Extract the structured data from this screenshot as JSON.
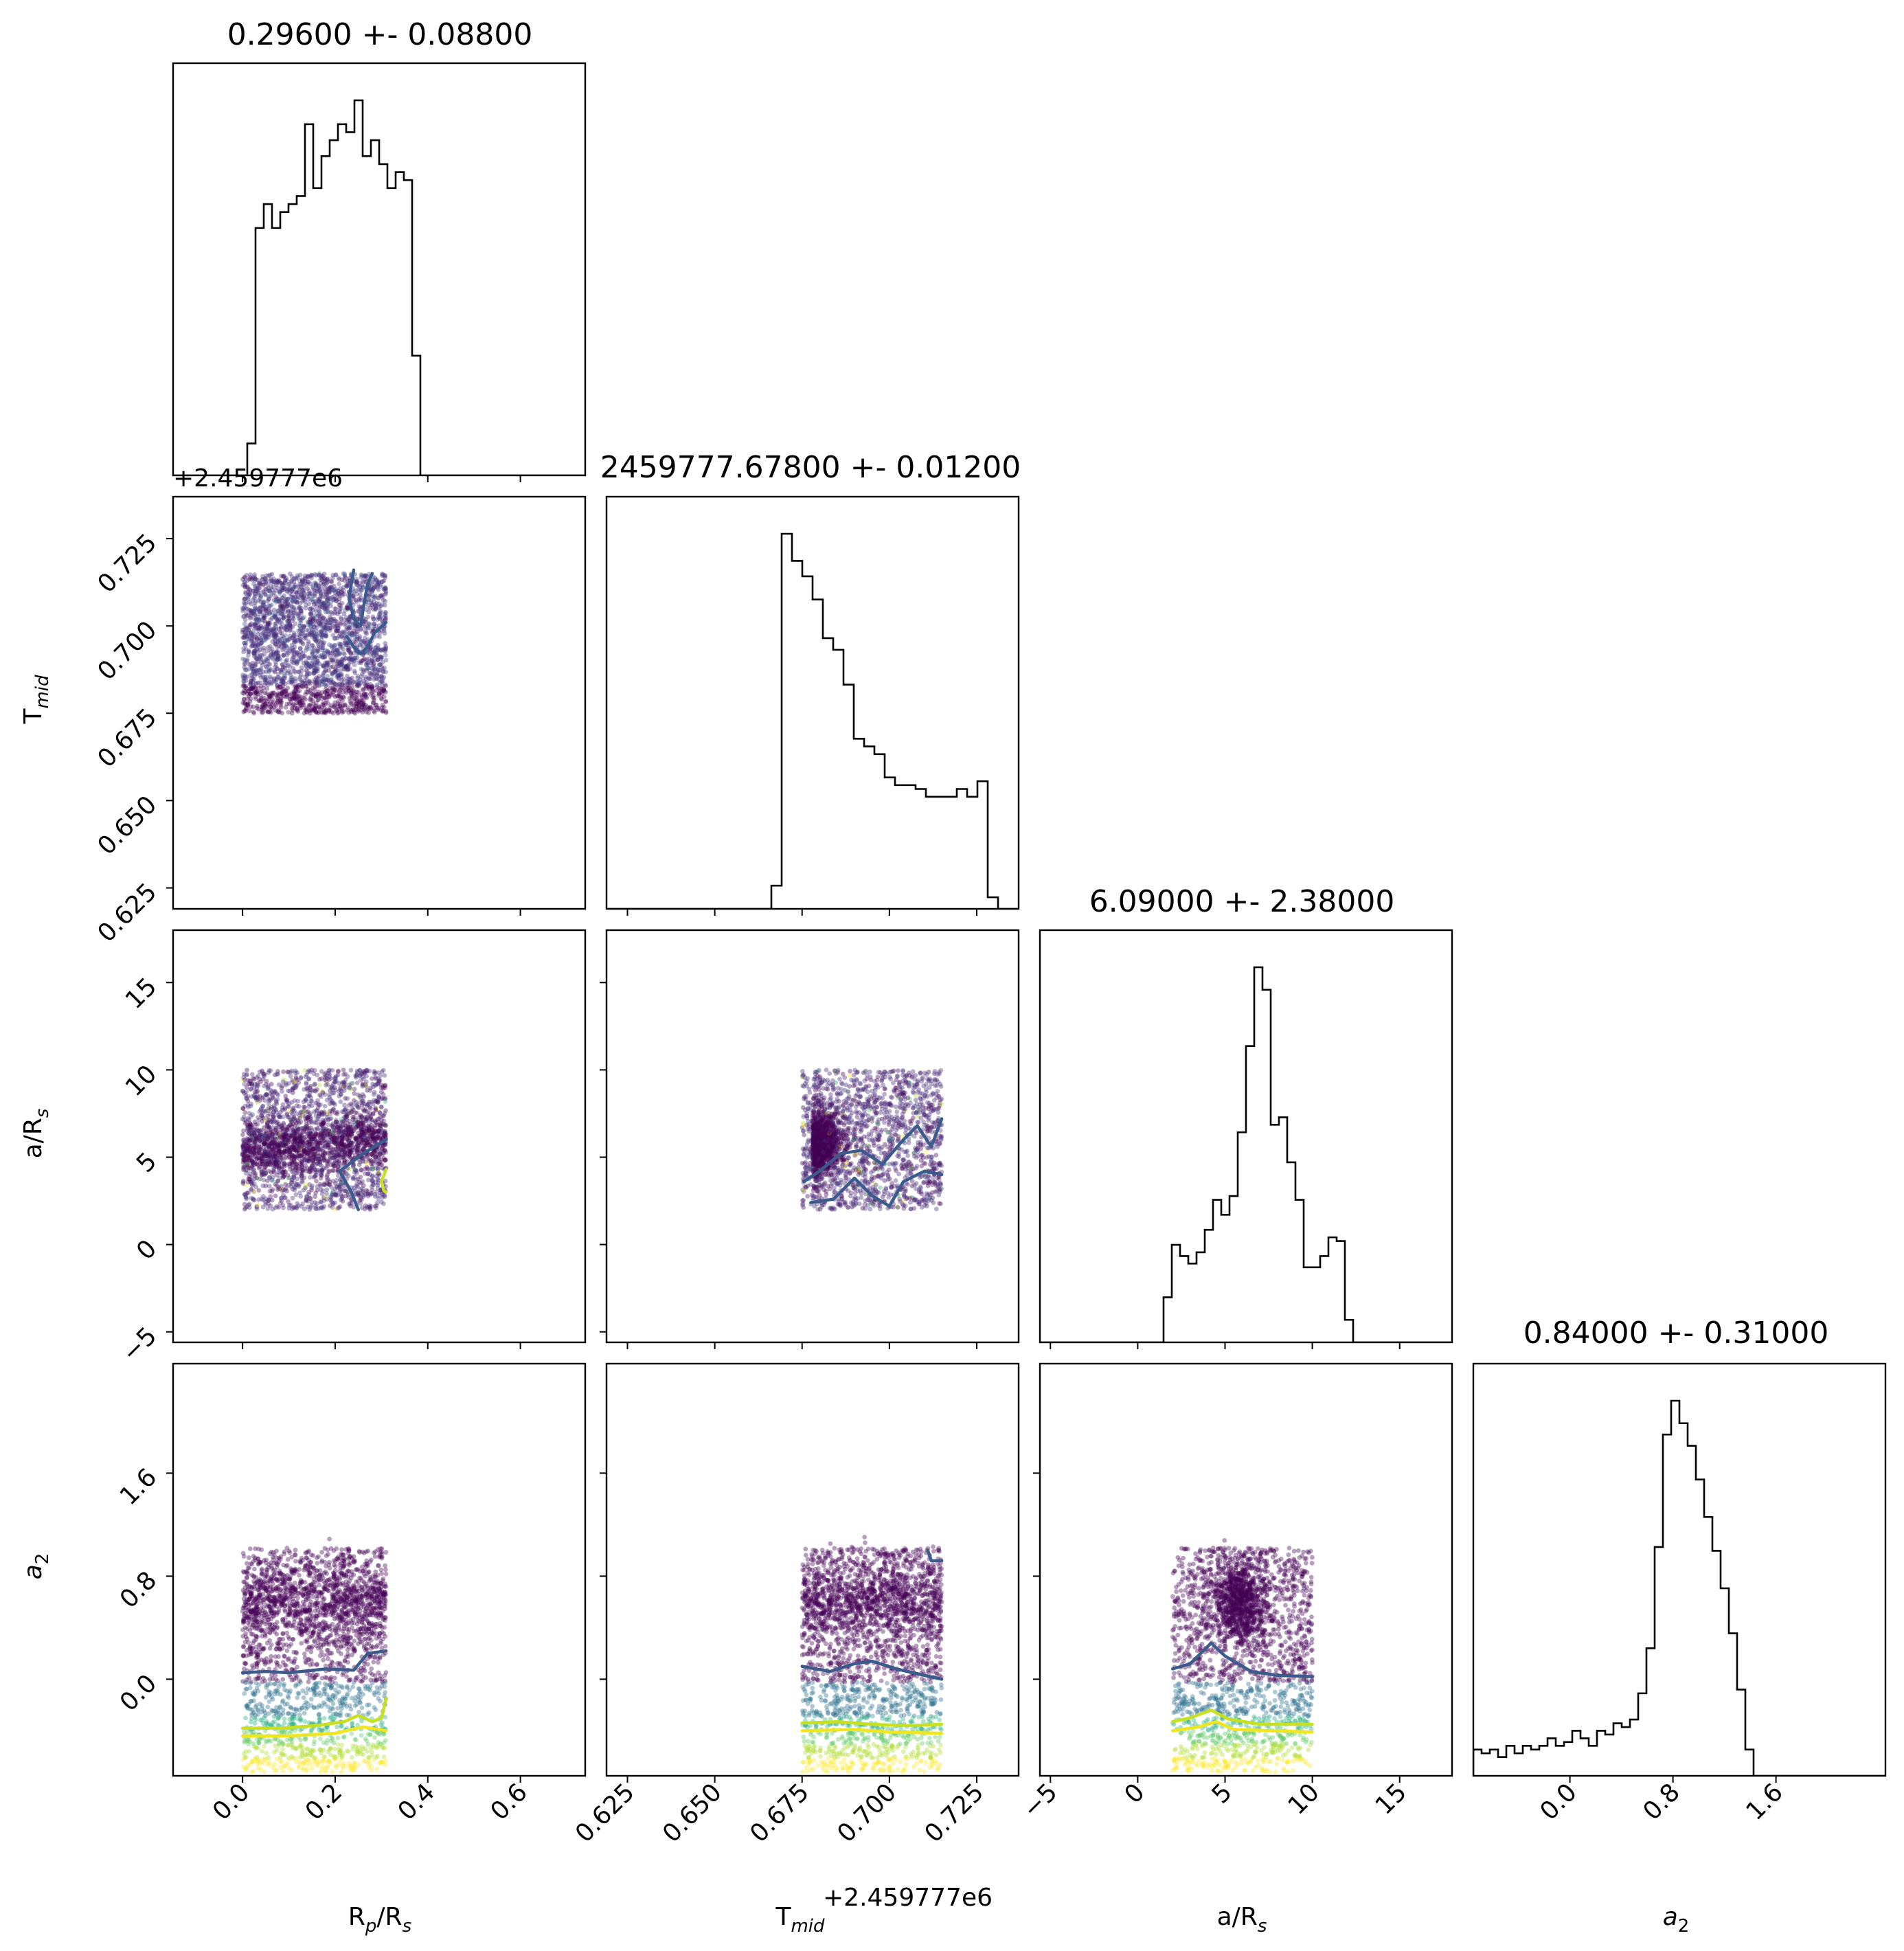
{
  "colors": {
    "hist": "#000000",
    "contour_low": "#3b5b8c",
    "contour_high": "#c8e020",
    "contour_top": "#f0e620",
    "viridis": [
      "#440154",
      "#472d7b",
      "#3b528b",
      "#2c728e",
      "#21918c",
      "#28ae80",
      "#5ec962",
      "#addc30",
      "#fde725"
    ]
  },
  "chart_data": {
    "type": "corner",
    "parameters": [
      {
        "key": "rp",
        "label": "R",
        "label_sub": "p",
        "label_suffix": "/R",
        "label_sub2": "s",
        "title": "0.29600 +- 0.08800",
        "range": [
          -0.15,
          0.74
        ],
        "ticks": [
          0.0,
          0.2,
          0.4,
          0.6
        ],
        "tick_labels": [
          "0.0",
          "0.2",
          "0.4",
          "0.6"
        ]
      },
      {
        "key": "tmid",
        "label": "T",
        "label_sub": "mid",
        "label_suffix": "",
        "label_sub2": "",
        "title": "2459777.67800 +- 0.01200",
        "offset_label": "+2.459777e6",
        "range": [
          0.619,
          0.737
        ],
        "ticks": [
          0.625,
          0.65,
          0.675,
          0.7,
          0.725
        ],
        "tick_labels": [
          "0.625",
          "0.650",
          "0.675",
          "0.700",
          "0.725"
        ]
      },
      {
        "key": "ars",
        "label": "a/R",
        "label_sub": "s",
        "label_suffix": "",
        "label_sub2": "",
        "title": "6.09000 +- 2.38000",
        "range": [
          -5.6,
          18.0
        ],
        "ticks": [
          -5,
          0,
          5,
          10,
          15
        ],
        "tick_labels": [
          "−5",
          "0",
          "5",
          "10",
          "15"
        ]
      },
      {
        "key": "a2",
        "label": "a",
        "label_sub": "2",
        "label_suffix": "",
        "label_sub2": "",
        "italic": true,
        "title": "0.84000 +- 0.31000",
        "range": [
          -0.75,
          2.45
        ],
        "ticks": [
          0.0,
          0.8,
          1.6
        ],
        "tick_labels": [
          "0.0",
          "0.8",
          "1.6"
        ]
      }
    ],
    "histograms": {
      "rp": {
        "edges_start": -0.15,
        "edges_end": 0.74,
        "bins": 50,
        "counts": [
          0,
          0,
          0,
          0,
          0,
          0,
          0,
          0,
          0,
          0.08,
          0.62,
          0.68,
          0.62,
          0.66,
          0.68,
          0.7,
          0.88,
          0.72,
          0.8,
          0.84,
          0.88,
          0.86,
          0.94,
          0.8,
          0.84,
          0.78,
          0.72,
          0.76,
          0.74,
          0.3,
          0,
          0,
          0,
          0,
          0,
          0,
          0,
          0,
          0,
          0,
          0,
          0,
          0,
          0,
          0,
          0,
          0,
          0,
          0,
          0
        ]
      },
      "tmid": {
        "edges_start": 0.619,
        "edges_end": 0.737,
        "bins": 40,
        "counts": [
          0,
          0,
          0,
          0,
          0,
          0,
          0,
          0,
          0,
          0,
          0,
          0,
          0,
          0,
          0,
          0,
          0.06,
          0.97,
          0.9,
          0.86,
          0.8,
          0.7,
          0.67,
          0.58,
          0.44,
          0.42,
          0.4,
          0.34,
          0.32,
          0.32,
          0.31,
          0.29,
          0.29,
          0.29,
          0.31,
          0.29,
          0.33,
          0.03,
          0,
          0
        ]
      },
      "ars": {
        "edges_start": -5.6,
        "edges_end": 18.0,
        "bins": 50,
        "counts": [
          0,
          0,
          0,
          0,
          0,
          0,
          0,
          0,
          0,
          0,
          0,
          0,
          0,
          0,
          0,
          0.12,
          0.26,
          0.23,
          0.21,
          0.24,
          0.3,
          0.38,
          0.34,
          0.39,
          0.56,
          0.79,
          1.0,
          0.94,
          0.58,
          0.6,
          0.48,
          0.38,
          0.2,
          0.2,
          0.23,
          0.28,
          0.27,
          0.06,
          0,
          0,
          0,
          0,
          0,
          0,
          0,
          0,
          0,
          0,
          0,
          0
        ]
      },
      "a2": {
        "edges_start": -0.75,
        "edges_end": 2.45,
        "bins": 50,
        "counts": [
          0.07,
          0.06,
          0.07,
          0.05,
          0.08,
          0.06,
          0.08,
          0.07,
          0.08,
          0.1,
          0.08,
          0.09,
          0.12,
          0.1,
          0.08,
          0.12,
          0.11,
          0.14,
          0.13,
          0.15,
          0.22,
          0.34,
          0.61,
          0.91,
          1.0,
          0.94,
          0.88,
          0.79,
          0.69,
          0.6,
          0.5,
          0.38,
          0.23,
          0.07,
          0,
          0,
          0,
          0,
          0,
          0,
          0,
          0,
          0,
          0,
          0,
          0,
          0,
          0,
          0,
          0
        ]
      }
    },
    "scatter_bounds": {
      "rp": [
        0.0,
        0.31
      ],
      "tmid": [
        0.675,
        0.715
      ],
      "ars": [
        2.0,
        10.0
      ],
      "a2": [
        -0.72,
        1.02
      ]
    },
    "contours": [
      {
        "pair": "tmid-rp",
        "color": "low",
        "points": [
          [
            0.24,
            0.716
          ],
          [
            0.23,
            0.708
          ],
          [
            0.24,
            0.702
          ],
          [
            0.255,
            0.7
          ],
          [
            0.262,
            0.706
          ],
          [
            0.27,
            0.712
          ],
          [
            0.28,
            0.715
          ]
        ]
      },
      {
        "pair": "tmid-rp",
        "color": "low",
        "points": [
          [
            0.31,
            0.701
          ],
          [
            0.285,
            0.698
          ],
          [
            0.27,
            0.694
          ],
          [
            0.255,
            0.692
          ],
          [
            0.24,
            0.694
          ],
          [
            0.225,
            0.697
          ]
        ]
      },
      {
        "pair": "ars-rp",
        "color": "low",
        "points": [
          [
            0.31,
            6.0
          ],
          [
            0.26,
            5.2
          ],
          [
            0.21,
            4.2
          ],
          [
            0.235,
            3.0
          ],
          [
            0.25,
            2.0
          ]
        ]
      },
      {
        "pair": "ars-rp",
        "color": "high",
        "points": [
          [
            0.31,
            4.3
          ],
          [
            0.3,
            3.6
          ],
          [
            0.305,
            3.1
          ],
          [
            0.31,
            3.0
          ]
        ]
      },
      {
        "pair": "ars-tmid",
        "color": "low",
        "points": [
          [
            0.6755,
            3.6
          ],
          [
            0.68,
            4.2
          ],
          [
            0.686,
            5.2
          ],
          [
            0.692,
            5.4
          ],
          [
            0.698,
            4.6
          ],
          [
            0.704,
            6.0
          ],
          [
            0.708,
            6.8
          ],
          [
            0.712,
            5.6
          ],
          [
            0.715,
            7.2
          ]
        ]
      },
      {
        "pair": "ars-tmid",
        "color": "low",
        "points": [
          [
            0.6775,
            2.4
          ],
          [
            0.684,
            2.6
          ],
          [
            0.69,
            3.8
          ],
          [
            0.695,
            2.8
          ],
          [
            0.7,
            2.2
          ],
          [
            0.704,
            3.6
          ],
          [
            0.71,
            4.2
          ],
          [
            0.715,
            4.0
          ]
        ]
      },
      {
        "pair": "a2-rp",
        "color": "low",
        "points": [
          [
            0.0,
            0.05
          ],
          [
            0.05,
            0.06
          ],
          [
            0.1,
            0.05
          ],
          [
            0.18,
            0.08
          ],
          [
            0.24,
            0.07
          ],
          [
            0.27,
            0.2
          ],
          [
            0.31,
            0.22
          ]
        ]
      },
      {
        "pair": "a2-rp",
        "color": "high",
        "points": [
          [
            0.0,
            -0.38
          ],
          [
            0.08,
            -0.38
          ],
          [
            0.16,
            -0.36
          ],
          [
            0.22,
            -0.33
          ],
          [
            0.25,
            -0.28
          ],
          [
            0.28,
            -0.33
          ],
          [
            0.3,
            -0.3
          ],
          [
            0.31,
            -0.15
          ]
        ]
      },
      {
        "pair": "a2-rp",
        "color": "top",
        "points": [
          [
            0.0,
            -0.44
          ],
          [
            0.1,
            -0.44
          ],
          [
            0.2,
            -0.42
          ],
          [
            0.26,
            -0.37
          ],
          [
            0.31,
            -0.4
          ]
        ]
      },
      {
        "pair": "a2-tmid",
        "color": "low",
        "points": [
          [
            0.675,
            0.1
          ],
          [
            0.683,
            0.06
          ],
          [
            0.69,
            0.12
          ],
          [
            0.695,
            0.14
          ],
          [
            0.702,
            0.08
          ],
          [
            0.71,
            0.03
          ],
          [
            0.715,
            0.0
          ]
        ]
      },
      {
        "pair": "a2-tmid",
        "color": "low",
        "points": [
          [
            0.711,
            1.0
          ],
          [
            0.712,
            0.92
          ],
          [
            0.715,
            0.92
          ]
        ]
      },
      {
        "pair": "a2-tmid",
        "color": "high",
        "points": [
          [
            0.675,
            -0.34
          ],
          [
            0.685,
            -0.33
          ],
          [
            0.695,
            -0.35
          ],
          [
            0.705,
            -0.36
          ],
          [
            0.715,
            -0.35
          ]
        ]
      },
      {
        "pair": "a2-tmid",
        "color": "top",
        "points": [
          [
            0.675,
            -0.4
          ],
          [
            0.69,
            -0.39
          ],
          [
            0.7,
            -0.41
          ],
          [
            0.715,
            -0.42
          ]
        ]
      },
      {
        "pair": "a2-ars",
        "color": "low",
        "points": [
          [
            2.0,
            0.08
          ],
          [
            3.0,
            0.12
          ],
          [
            4.2,
            0.28
          ],
          [
            5.0,
            0.18
          ],
          [
            6.5,
            0.06
          ],
          [
            8.0,
            0.03
          ],
          [
            10.0,
            0.02
          ]
        ]
      },
      {
        "pair": "a2-ars",
        "color": "high",
        "points": [
          [
            2.0,
            -0.33
          ],
          [
            3.0,
            -0.3
          ],
          [
            4.2,
            -0.24
          ],
          [
            5.2,
            -0.31
          ],
          [
            7.0,
            -0.35
          ],
          [
            10.0,
            -0.35
          ]
        ]
      },
      {
        "pair": "a2-ars",
        "color": "top",
        "points": [
          [
            2.0,
            -0.4
          ],
          [
            3.5,
            -0.37
          ],
          [
            4.5,
            -0.33
          ],
          [
            5.5,
            -0.39
          ],
          [
            10.0,
            -0.41
          ]
        ]
      }
    ],
    "grid": false,
    "legend": "none"
  }
}
